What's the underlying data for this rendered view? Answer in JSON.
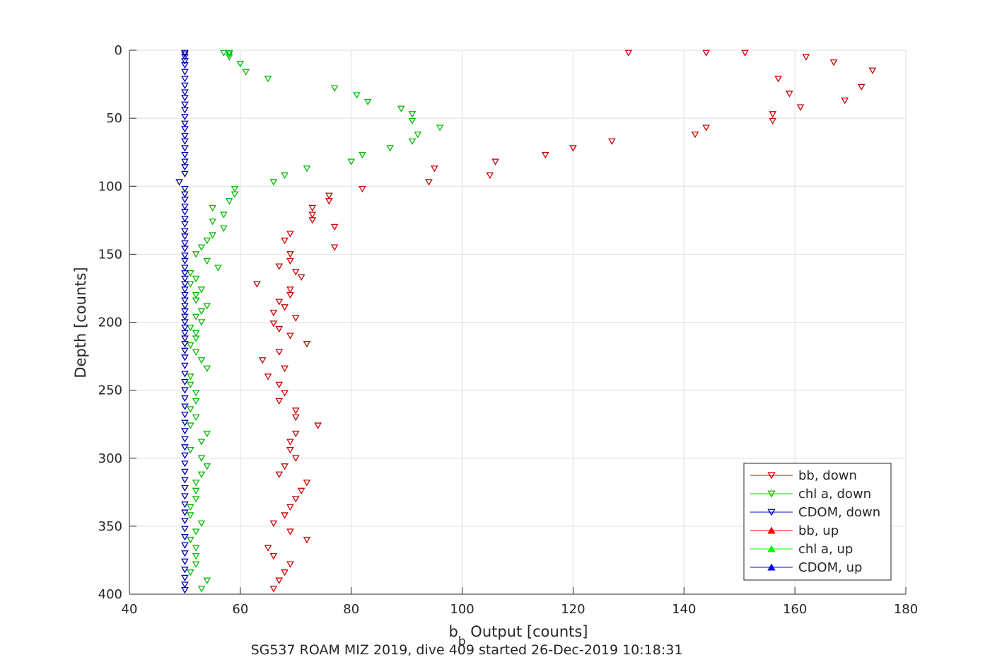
{
  "chart_data": {
    "type": "scatter",
    "title": "",
    "xlabel": "b_b Output [counts]",
    "xlabel_base": "b",
    "xlabel_sub": "b",
    "xlabel_rest": " Output [counts]",
    "ylabel": "Depth [counts]",
    "caption": "SG537 ROAM MIZ 2019, dive 409 started 26-Dec-2019 10:18:31",
    "xlim": [
      40,
      180
    ],
    "ylim": [
      400,
      0
    ],
    "y_reversed": true,
    "grid": true,
    "legend_position": "bottom-right",
    "xticks": [
      "40",
      "60",
      "80",
      "100",
      "120",
      "140",
      "160",
      "180"
    ],
    "yticks": [
      "0",
      "50",
      "100",
      "150",
      "200",
      "250",
      "300",
      "350",
      "400"
    ],
    "legend": [
      {
        "label": "bb, down",
        "color": "#dd0000",
        "marker": "down-triangle"
      },
      {
        "label": "chl a, down",
        "color": "#00cc00",
        "marker": "down-triangle"
      },
      {
        "label": "CDOM, down",
        "color": "#0000cc",
        "marker": "down-triangle"
      },
      {
        "label": "bb, up",
        "color": "#ff0000",
        "marker": "up-triangle"
      },
      {
        "label": "chl a, up",
        "color": "#00ff00",
        "marker": "up-triangle"
      },
      {
        "label": "CDOM, up",
        "color": "#0000ff",
        "marker": "up-triangle"
      }
    ],
    "series": [
      {
        "name": "bb, down",
        "color": "#cc0000",
        "marker": "down-triangle",
        "points": [
          [
            130,
            2
          ],
          [
            144,
            2
          ],
          [
            151,
            2
          ],
          [
            162,
            5
          ],
          [
            167,
            9
          ],
          [
            174,
            15
          ],
          [
            157,
            21
          ],
          [
            172,
            27
          ],
          [
            159,
            32
          ],
          [
            169,
            37
          ],
          [
            161,
            42
          ],
          [
            156,
            47
          ],
          [
            156,
            52
          ],
          [
            144,
            57
          ],
          [
            142,
            62
          ],
          [
            127,
            67
          ],
          [
            120,
            72
          ],
          [
            115,
            77
          ],
          [
            106,
            82
          ],
          [
            95,
            87
          ],
          [
            105,
            92
          ],
          [
            94,
            97
          ],
          [
            82,
            102
          ],
          [
            76,
            107
          ],
          [
            76,
            111
          ],
          [
            73,
            116
          ],
          [
            73,
            121
          ],
          [
            73,
            125
          ],
          [
            77,
            130
          ],
          [
            69,
            135
          ],
          [
            68,
            140
          ],
          [
            77,
            145
          ],
          [
            69,
            150
          ],
          [
            69,
            155
          ],
          [
            67,
            159
          ],
          [
            70,
            163
          ],
          [
            71,
            167
          ],
          [
            63,
            172
          ],
          [
            69,
            176
          ],
          [
            69,
            180
          ],
          [
            67,
            185
          ],
          [
            68,
            189
          ],
          [
            66,
            193
          ],
          [
            70,
            197
          ],
          [
            66,
            201
          ],
          [
            67,
            205
          ],
          [
            69,
            210
          ],
          [
            72,
            216
          ],
          [
            67,
            222
          ],
          [
            64,
            228
          ],
          [
            68,
            234
          ],
          [
            65,
            240
          ],
          [
            67,
            246
          ],
          [
            68,
            252
          ],
          [
            67,
            258
          ],
          [
            70,
            265
          ],
          [
            70,
            270
          ],
          [
            74,
            276
          ],
          [
            70,
            282
          ],
          [
            69,
            288
          ],
          [
            69,
            294
          ],
          [
            70,
            300
          ],
          [
            68,
            306
          ],
          [
            67,
            312
          ],
          [
            72,
            318
          ],
          [
            71,
            324
          ],
          [
            70,
            330
          ],
          [
            69,
            336
          ],
          [
            68,
            342
          ],
          [
            66,
            348
          ],
          [
            69,
            354
          ],
          [
            72,
            360
          ],
          [
            65,
            366
          ],
          [
            66,
            372
          ],
          [
            69,
            378
          ],
          [
            68,
            384
          ],
          [
            67,
            390
          ],
          [
            66,
            396
          ]
        ]
      },
      {
        "name": "chl a, down",
        "color": "#00bb00",
        "marker": "down-triangle",
        "points": [
          [
            57,
            2
          ],
          [
            58,
            2
          ],
          [
            58,
            3
          ],
          [
            58,
            5
          ],
          [
            60,
            10
          ],
          [
            61,
            16
          ],
          [
            65,
            21
          ],
          [
            77,
            28
          ],
          [
            81,
            33
          ],
          [
            83,
            38
          ],
          [
            89,
            43
          ],
          [
            91,
            47
          ],
          [
            91,
            52
          ],
          [
            96,
            57
          ],
          [
            92,
            62
          ],
          [
            91,
            67
          ],
          [
            87,
            72
          ],
          [
            82,
            77
          ],
          [
            80,
            82
          ],
          [
            72,
            87
          ],
          [
            68,
            92
          ],
          [
            66,
            97
          ],
          [
            59,
            102
          ],
          [
            59,
            106
          ],
          [
            58,
            111
          ],
          [
            55,
            116
          ],
          [
            57,
            121
          ],
          [
            55,
            126
          ],
          [
            57,
            131
          ],
          [
            55,
            136
          ],
          [
            54,
            140
          ],
          [
            53,
            145
          ],
          [
            52,
            150
          ],
          [
            54,
            155
          ],
          [
            56,
            160
          ],
          [
            51,
            164
          ],
          [
            52,
            168
          ],
          [
            51,
            172
          ],
          [
            53,
            176
          ],
          [
            52,
            180
          ],
          [
            52,
            184
          ],
          [
            54,
            188
          ],
          [
            53,
            192
          ],
          [
            52,
            196
          ],
          [
            53,
            200
          ],
          [
            51,
            204
          ],
          [
            52,
            208
          ],
          [
            52,
            212
          ],
          [
            51,
            217
          ],
          [
            52,
            222
          ],
          [
            53,
            228
          ],
          [
            54,
            234
          ],
          [
            51,
            240
          ],
          [
            51,
            246
          ],
          [
            52,
            252
          ],
          [
            52,
            258
          ],
          [
            51,
            264
          ],
          [
            52,
            270
          ],
          [
            51,
            276
          ],
          [
            54,
            282
          ],
          [
            53,
            288
          ],
          [
            51,
            294
          ],
          [
            53,
            300
          ],
          [
            54,
            306
          ],
          [
            53,
            312
          ],
          [
            52,
            318
          ],
          [
            52,
            324
          ],
          [
            52,
            330
          ],
          [
            51,
            336
          ],
          [
            51,
            342
          ],
          [
            53,
            348
          ],
          [
            52,
            354
          ],
          [
            51,
            360
          ],
          [
            52,
            366
          ],
          [
            52,
            372
          ],
          [
            52,
            378
          ],
          [
            51,
            384
          ],
          [
            54,
            390
          ],
          [
            53,
            396
          ]
        ]
      },
      {
        "name": "CDOM, down",
        "color": "#0000bb",
        "marker": "down-triangle",
        "points": [
          [
            50,
            2
          ],
          [
            50,
            3
          ],
          [
            50,
            5
          ],
          [
            50,
            8
          ],
          [
            50,
            11
          ],
          [
            50,
            16
          ],
          [
            50,
            21
          ],
          [
            50,
            26
          ],
          [
            50,
            31
          ],
          [
            50,
            35
          ],
          [
            50,
            40
          ],
          [
            50,
            44
          ],
          [
            50,
            49
          ],
          [
            50,
            54
          ],
          [
            50,
            58
          ],
          [
            50,
            63
          ],
          [
            50,
            67
          ],
          [
            50,
            72
          ],
          [
            50,
            77
          ],
          [
            50,
            82
          ],
          [
            50,
            86
          ],
          [
            50,
            91
          ],
          [
            49,
            97
          ],
          [
            50,
            102
          ],
          [
            50,
            106
          ],
          [
            50,
            110
          ],
          [
            50,
            115
          ],
          [
            50,
            119
          ],
          [
            50,
            124
          ],
          [
            50,
            128
          ],
          [
            50,
            133
          ],
          [
            50,
            137
          ],
          [
            50,
            142
          ],
          [
            50,
            146
          ],
          [
            50,
            151
          ],
          [
            50,
            155
          ],
          [
            50,
            160
          ],
          [
            50,
            164
          ],
          [
            50,
            168
          ],
          [
            50,
            172
          ],
          [
            50,
            176
          ],
          [
            50,
            180
          ],
          [
            50,
            184
          ],
          [
            50,
            188
          ],
          [
            50,
            192
          ],
          [
            50,
            196
          ],
          [
            50,
            200
          ],
          [
            50,
            204
          ],
          [
            50,
            208
          ],
          [
            50,
            212
          ],
          [
            50,
            216
          ],
          [
            50,
            221
          ],
          [
            50,
            226
          ],
          [
            50,
            232
          ],
          [
            50,
            238
          ],
          [
            50,
            244
          ],
          [
            50,
            250
          ],
          [
            50,
            256
          ],
          [
            50,
            262
          ],
          [
            50,
            268
          ],
          [
            50,
            274
          ],
          [
            50,
            280
          ],
          [
            50,
            286
          ],
          [
            50,
            292
          ],
          [
            50,
            298
          ],
          [
            50,
            304
          ],
          [
            50,
            310
          ],
          [
            50,
            316
          ],
          [
            50,
            322
          ],
          [
            50,
            328
          ],
          [
            50,
            334
          ],
          [
            50,
            340
          ],
          [
            50,
            346
          ],
          [
            50,
            352
          ],
          [
            50,
            358
          ],
          [
            50,
            364
          ],
          [
            50,
            370
          ],
          [
            50,
            376
          ],
          [
            50,
            382
          ],
          [
            50,
            388
          ],
          [
            50,
            393
          ],
          [
            50,
            397
          ]
        ]
      }
    ]
  }
}
